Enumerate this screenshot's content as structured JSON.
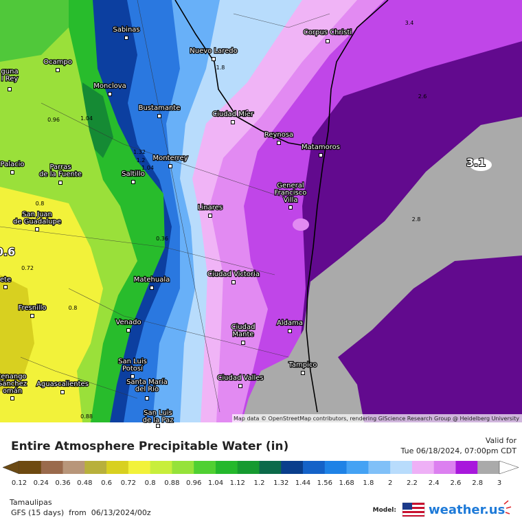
{
  "map": {
    "cities": [
      {
        "lines": [
          "Sabinas"
        ]
      },
      {
        "lines": [
          "Corpus Christi"
        ]
      },
      {
        "lines": [
          "Nuevo Laredo"
        ]
      },
      {
        "lines": [
          "Ocampo"
        ]
      },
      {
        "lines": [
          "guna",
          "l Rey"
        ]
      },
      {
        "lines": [
          "Monclova"
        ]
      },
      {
        "lines": [
          "Bustamante"
        ]
      },
      {
        "lines": [
          "Ciudad Mier"
        ]
      },
      {
        "lines": [
          "Reynosa"
        ]
      },
      {
        "lines": [
          "Matamoros"
        ]
      },
      {
        "lines": [
          "Monterrey"
        ]
      },
      {
        "lines": [
          "Palacio"
        ]
      },
      {
        "lines": [
          "Parras",
          "de la Fuente"
        ]
      },
      {
        "lines": [
          "Saltillo"
        ]
      },
      {
        "lines": [
          "General",
          "Francisco",
          "Villa"
        ]
      },
      {
        "lines": [
          "Linares"
        ]
      },
      {
        "lines": [
          "San Juan",
          "de Guadalupe"
        ]
      },
      {
        "lines": [
          "Ciudad Victoria"
        ]
      },
      {
        "lines": [
          "Matehuala"
        ]
      },
      {
        "lines": [
          "ete"
        ]
      },
      {
        "lines": [
          "Fresnillo"
        ]
      },
      {
        "lines": [
          "Venado"
        ]
      },
      {
        "lines": [
          "Aldama"
        ]
      },
      {
        "lines": [
          "Ciudad",
          "Mante"
        ]
      },
      {
        "lines": [
          "Tampico"
        ]
      },
      {
        "lines": [
          "San Luis",
          "Potosí"
        ]
      },
      {
        "lines": [
          "tenango",
          "Sánchez",
          "omán"
        ]
      },
      {
        "lines": [
          "Aguascalientes"
        ]
      },
      {
        "lines": [
          "Ciudad Valles"
        ]
      },
      {
        "lines": [
          "Santa María",
          "del Río"
        ]
      },
      {
        "lines": [
          "San Luis",
          "de la Paz"
        ]
      }
    ],
    "contour_labels": [
      "3.4",
      "2.6",
      "3.1",
      "2.8",
      "1.8",
      "2",
      "0.96",
      "1.04",
      "1.32",
      "1.2",
      "1.04",
      "0.8",
      "0.6",
      "0.72",
      "0.8",
      "0.36",
      "0.88"
    ],
    "attribution": "Map data © OpenStreetMap contributors, rendering GIScience Research Group @ Heidelberg University"
  },
  "header": {
    "title": "Entire Atmosphere Precipitable Water (in)",
    "valid_label": "Valid for",
    "valid_time": "Tue 06/18/2024, 07:00pm CDT"
  },
  "colorbar": {
    "colors": [
      "#6b4a14",
      "#6e4a10",
      "#9a6a4c",
      "#b8967a",
      "#b8b03c",
      "#d8d020",
      "#f2f23a",
      "#c8ee3c",
      "#96e23a",
      "#50d032",
      "#24b82c",
      "#169a30",
      "#0c6a4a",
      "#0a3e8c",
      "#1462c8",
      "#1e82e6",
      "#44a2f4",
      "#80c0f8",
      "#b8dcfc",
      "#eeb0f6",
      "#dc80f0",
      "#a818dc",
      "#aaaaaa",
      "#ffffff"
    ],
    "labels": [
      "0.12",
      "0.24",
      "0.36",
      "0.48",
      "0.6",
      "0.72",
      "0.8",
      "0.88",
      "0.96",
      "1.04",
      "1.12",
      "1.2",
      "1.32",
      "1.44",
      "1.56",
      "1.68",
      "1.8",
      "2",
      "2.2",
      "2.4",
      "2.6",
      "2.8",
      "3"
    ]
  },
  "footer": {
    "region": "Tamaulipas",
    "run": "GFS (15 days)  from  06/13/2024/00z",
    "model_label": "Model:",
    "brand": "weather.us"
  }
}
